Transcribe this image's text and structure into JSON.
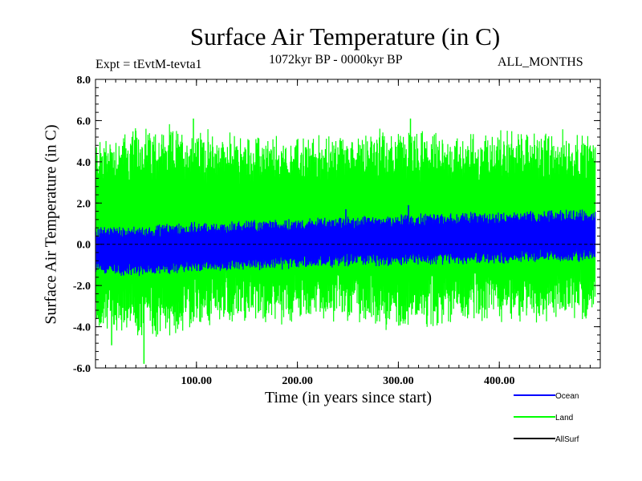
{
  "chart_data": {
    "type": "line",
    "title": "Surface Air Temperature (in C)",
    "subtitle_left": "Expt = tEvtM-tevta1",
    "subtitle_center": "1072kyr BP - 0000kyr BP",
    "subtitle_right": "ALL_MONTHS",
    "xlabel": "Time (in years since start)",
    "ylabel": "Surface Air Temperature (in C)",
    "xlim": [
      0,
      500
    ],
    "ylim": [
      -6.0,
      8.0
    ],
    "x_ticks": [
      100,
      200,
      300,
      400
    ],
    "x_tick_labels": [
      "100.00",
      "200.00",
      "300.00",
      "400.00"
    ],
    "y_ticks": [
      -6.0,
      -4.0,
      -2.0,
      0.0,
      2.0,
      4.0,
      6.0,
      8.0
    ],
    "y_tick_labels": [
      "-6.0",
      "-4.0",
      "-2.0",
      "0.0",
      "2.0",
      "4.0",
      "6.0",
      "8.0"
    ],
    "series": [
      {
        "name": "Land",
        "color": "#00ff00",
        "description_stats": {
          "upper_start": 5.0,
          "upper_end": 5.2,
          "lower_start": -3.8,
          "lower_end": -3.0,
          "max": 6.1,
          "min": -5.8
        },
        "envelope": {
          "x": [
            0,
            50,
            100,
            150,
            200,
            250,
            300,
            350,
            400,
            450,
            495
          ],
          "upper": [
            5.0,
            5.5,
            5.3,
            5.0,
            5.0,
            5.1,
            5.4,
            5.0,
            5.3,
            5.3,
            5.1
          ],
          "lower": [
            -4.0,
            -4.4,
            -3.8,
            -3.5,
            -3.5,
            -3.6,
            -3.8,
            -3.5,
            -3.5,
            -3.6,
            -3.3
          ]
        }
      },
      {
        "name": "Ocean",
        "color": "#0000ff",
        "envelope": {
          "x": [
            0,
            50,
            100,
            150,
            200,
            250,
            300,
            350,
            400,
            450,
            495
          ],
          "upper": [
            0.8,
            0.9,
            1.0,
            1.1,
            1.2,
            1.3,
            1.4,
            1.5,
            1.5,
            1.6,
            1.6
          ],
          "lower": [
            -1.4,
            -1.5,
            -1.3,
            -1.2,
            -1.1,
            -1.0,
            -1.0,
            -0.9,
            -0.9,
            -0.8,
            -0.8
          ]
        }
      },
      {
        "name": "AllSurf",
        "color": "#000000",
        "values_const": 0.0
      }
    ],
    "legend": [
      {
        "name": "Ocean",
        "color": "#0000ff"
      },
      {
        "name": "Land",
        "color": "#00ff00"
      },
      {
        "name": "AllSurf",
        "color": "#000000"
      }
    ]
  }
}
